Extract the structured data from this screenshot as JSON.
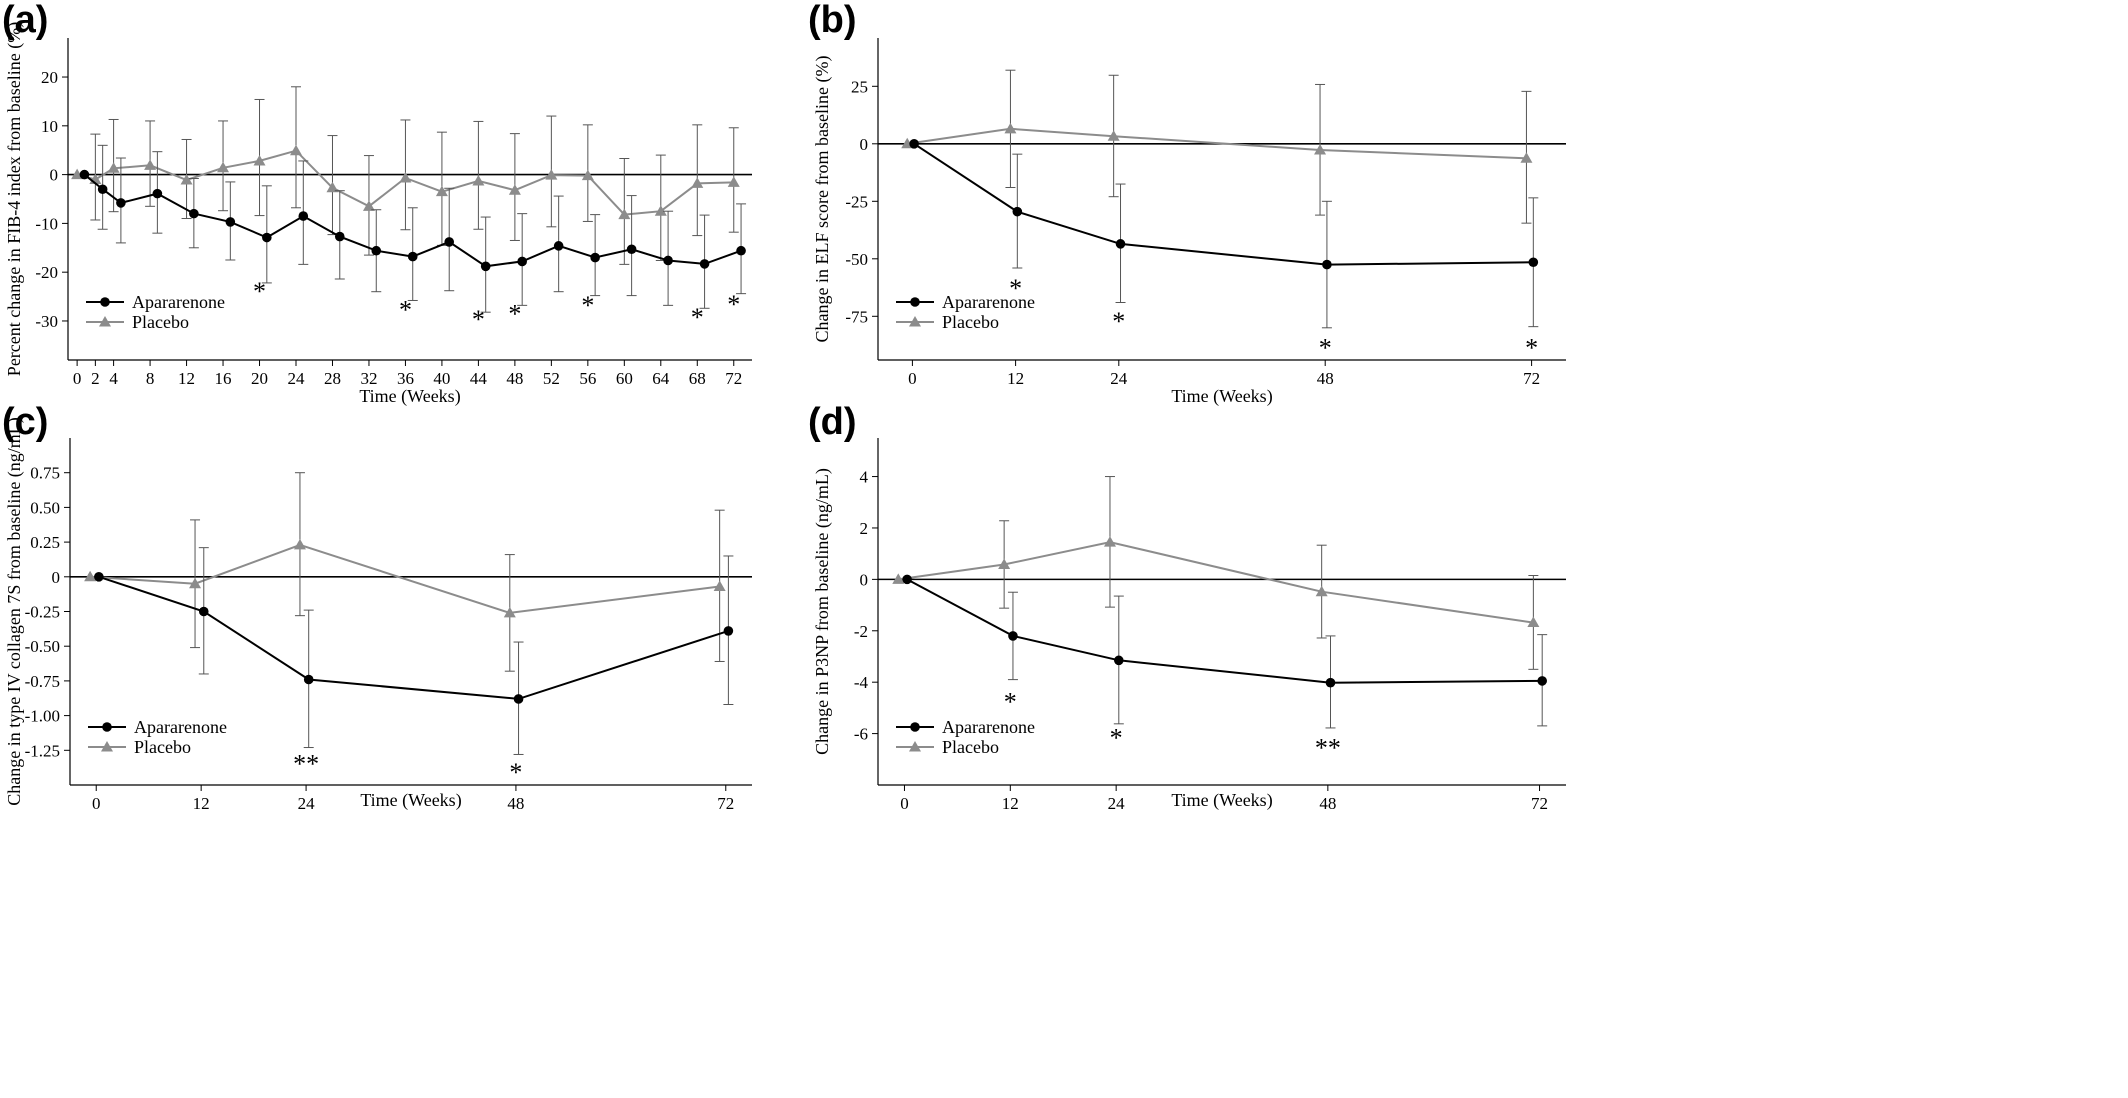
{
  "chart_data": [
    {
      "panel": "(a)",
      "type": "line",
      "xlabel": "Time (Weeks)",
      "ylabel": "Percent change in FIB-4 index from baseline (%)",
      "xlim": [
        -1,
        74
      ],
      "ylim": [
        -38,
        28
      ],
      "x_ticks": [
        "0",
        "2",
        "4",
        "8",
        "12",
        "16",
        "20",
        "24",
        "28",
        "32",
        "36",
        "40",
        "44",
        "48",
        "52",
        "56",
        "60",
        "64",
        "68",
        "72"
      ],
      "y_ticks": [
        "20",
        "10",
        "0",
        "-10",
        "-20",
        "-30"
      ],
      "grid": false,
      "legend_position": "bottom-left",
      "zero_line": true,
      "series": [
        {
          "name": "Apararenone",
          "color": "#000000",
          "marker": "circle",
          "x_offset": 0.8,
          "x": [
            0,
            2,
            4,
            8,
            12,
            16,
            20,
            24,
            28,
            32,
            36,
            40,
            44,
            48,
            52,
            56,
            60,
            64,
            68,
            72
          ],
          "y": [
            0,
            -3,
            -5.8,
            -3.9,
            -8,
            -9.7,
            -12.9,
            -8.5,
            -12.7,
            -15.6,
            -16.8,
            -13.8,
            -18.8,
            -17.8,
            -14.6,
            -17,
            -15.3,
            -17.6,
            -18.3,
            -15.6
          ],
          "error_low": [
            null,
            -11.2,
            -14,
            -12,
            -15,
            -17.5,
            -22.2,
            -18.4,
            -21.4,
            -24,
            -25.8,
            -23.8,
            -28.2,
            -26.8,
            -24,
            -24.8,
            -24.8,
            -26.8,
            -27.4,
            -24.4
          ],
          "error_high": [
            null,
            6,
            3.4,
            4.7,
            -0.8,
            -1.5,
            -2.3,
            2.8,
            -3.3,
            -7.2,
            -6.8,
            -2.8,
            -8.7,
            -8,
            -4.4,
            -8.2,
            -4.3,
            -7.5,
            -8.3,
            -6
          ]
        },
        {
          "name": "Placebo",
          "color": "#8c8c8c",
          "marker": "triangle",
          "x_offset": 0,
          "x": [
            0,
            2,
            4,
            8,
            12,
            16,
            20,
            24,
            28,
            32,
            36,
            40,
            44,
            48,
            52,
            56,
            60,
            64,
            68,
            72
          ],
          "y": [
            0,
            -1,
            1.3,
            1.9,
            -1.1,
            1.4,
            2.8,
            4.9,
            -2.7,
            -6.5,
            -0.7,
            -3.5,
            -1.3,
            -3.2,
            -0.1,
            -0.2,
            -8.2,
            -7.5,
            -1.8,
            -1.6
          ],
          "error_low": [
            null,
            -9.3,
            -7.6,
            -6.5,
            -9,
            -7.4,
            -8.4,
            -6.8,
            -12.3,
            -16.5,
            -11.3,
            -14.5,
            -11.2,
            -13.5,
            -10.7,
            -9.6,
            -18.4,
            -17.6,
            -12.5,
            -11.8
          ],
          "error_high": [
            null,
            8.3,
            11.3,
            11,
            7.2,
            11,
            15.4,
            18,
            8,
            3.9,
            11.2,
            8.7,
            10.9,
            8.4,
            12,
            10.2,
            3.3,
            4,
            10.2,
            9.6
          ]
        }
      ],
      "annotations": [
        {
          "x": 20,
          "y": -25.7,
          "text": "*"
        },
        {
          "x": 36,
          "y": -29.5,
          "text": "*"
        },
        {
          "x": 44,
          "y": -31.4,
          "text": "*"
        },
        {
          "x": 48,
          "y": -30.3,
          "text": "*"
        },
        {
          "x": 56,
          "y": -28.6,
          "text": "*"
        },
        {
          "x": 68,
          "y": -31,
          "text": "*"
        },
        {
          "x": 72,
          "y": -28.4,
          "text": "*"
        }
      ]
    },
    {
      "panel": "(b)",
      "type": "line",
      "xlabel": "Time (Weeks)",
      "ylabel": "Change in ELF score from baseline (%)",
      "xlim": [
        -4,
        76
      ],
      "ylim": [
        -94,
        46
      ],
      "x_ticks": [
        "0",
        "12",
        "24",
        "48",
        "72"
      ],
      "y_ticks": [
        "25",
        "0",
        "-25",
        "-50",
        "-75"
      ],
      "grid": false,
      "legend_position": "bottom-left",
      "zero_line": true,
      "series": [
        {
          "name": "Apararenone",
          "color": "#000000",
          "marker": "circle",
          "x_offset": 0.2,
          "x": [
            0,
            12,
            24,
            48,
            72
          ],
          "y": [
            0,
            -29.5,
            -43.5,
            -52.5,
            -51.5
          ],
          "error_low": [
            null,
            -54,
            -69,
            -80,
            -79.5
          ],
          "error_high": [
            null,
            -4.5,
            -17.5,
            -25,
            -23.5
          ]
        },
        {
          "name": "Placebo",
          "color": "#8c8c8c",
          "marker": "triangle",
          "x_offset": -0.6,
          "x": [
            0,
            12,
            24,
            48,
            72
          ],
          "y": [
            0,
            6.5,
            3.3,
            -2.7,
            -6.3
          ],
          "error_low": [
            null,
            -19,
            -23,
            -31,
            -34.5
          ],
          "error_high": [
            null,
            32,
            29.8,
            25.8,
            22.8
          ]
        }
      ],
      "annotations": [
        {
          "x": 12,
          "y": -66.5,
          "text": "*"
        },
        {
          "x": 24,
          "y": -81,
          "text": "*"
        },
        {
          "x": 48,
          "y": -92.5,
          "text": "*"
        },
        {
          "x": 72,
          "y": -92.5,
          "text": "*"
        }
      ]
    },
    {
      "panel": "(c)",
      "type": "line",
      "xlabel": "Time (Weeks)",
      "ylabel": "Change in type IV collagen 7S from baseline (ng/mL)",
      "xlim": [
        -3,
        75
      ],
      "ylim": [
        -1.5,
        1.0
      ],
      "x_ticks": [
        "0",
        "12",
        "24",
        "48",
        "72"
      ],
      "y_ticks": [
        "0.75",
        "0.50",
        "0.25",
        "0",
        "-0.25",
        "-0.50",
        "-0.75",
        "-1.00",
        "-1.25"
      ],
      "grid": false,
      "legend_position": "bottom-left",
      "zero_line": true,
      "series": [
        {
          "name": "Apararenone",
          "color": "#000000",
          "marker": "circle",
          "x_offset": 0.3,
          "x": [
            0,
            12,
            24,
            48,
            72
          ],
          "y": [
            0,
            -0.25,
            -0.74,
            -0.88,
            -0.39
          ],
          "error_low": [
            null,
            -0.7,
            -1.23,
            -1.28,
            -0.92
          ],
          "error_high": [
            null,
            0.21,
            -0.24,
            -0.47,
            0.15
          ]
        },
        {
          "name": "Placebo",
          "color": "#8c8c8c",
          "marker": "triangle",
          "x_offset": -0.7,
          "x": [
            0,
            12,
            24,
            48,
            72
          ],
          "y": [
            0,
            -0.05,
            0.23,
            -0.26,
            -0.07
          ],
          "error_low": [
            null,
            -0.51,
            -0.28,
            -0.68,
            -0.61
          ],
          "error_high": [
            null,
            0.41,
            0.75,
            0.16,
            0.48
          ]
        }
      ],
      "annotations": [
        {
          "x": 24,
          "y": -1.41,
          "text": "**"
        },
        {
          "x": 48,
          "y": -1.47,
          "text": "*"
        }
      ]
    },
    {
      "panel": "(d)",
      "type": "line",
      "xlabel": "Time (Weeks)",
      "ylabel": "Change in P3NP from baseline (ng/mL)",
      "xlim": [
        -3,
        75
      ],
      "ylim": [
        -8,
        5.5
      ],
      "x_ticks": [
        "0",
        "12",
        "24",
        "48",
        "72"
      ],
      "y_ticks": [
        "4",
        "2",
        "0",
        "-2",
        "-4",
        "-6"
      ],
      "grid": false,
      "legend_position": "bottom-left",
      "zero_line": true,
      "series": [
        {
          "name": "Apararenone",
          "color": "#000000",
          "marker": "circle",
          "x_offset": 0.3,
          "x": [
            0,
            12,
            24,
            48,
            72
          ],
          "y": [
            0,
            -2.2,
            -3.15,
            -4.02,
            -3.95
          ],
          "error_low": [
            null,
            -3.9,
            -5.62,
            -5.78,
            -5.7
          ],
          "error_high": [
            null,
            -0.5,
            -0.65,
            -2.2,
            -2.15
          ]
        },
        {
          "name": "Placebo",
          "color": "#8c8c8c",
          "marker": "triangle",
          "x_offset": -0.7,
          "x": [
            0,
            12,
            24,
            48,
            72
          ],
          "y": [
            0,
            0.58,
            1.45,
            -0.48,
            -1.68
          ],
          "error_low": [
            null,
            -1.12,
            -1.08,
            -2.28,
            -3.5
          ],
          "error_high": [
            null,
            2.28,
            4,
            1.33,
            0.15
          ]
        }
      ],
      "annotations": [
        {
          "x": 12,
          "y": -5.1,
          "text": "*"
        },
        {
          "x": 24,
          "y": -6.5,
          "text": "*"
        },
        {
          "x": 48,
          "y": -6.9,
          "text": "**"
        }
      ]
    }
  ]
}
